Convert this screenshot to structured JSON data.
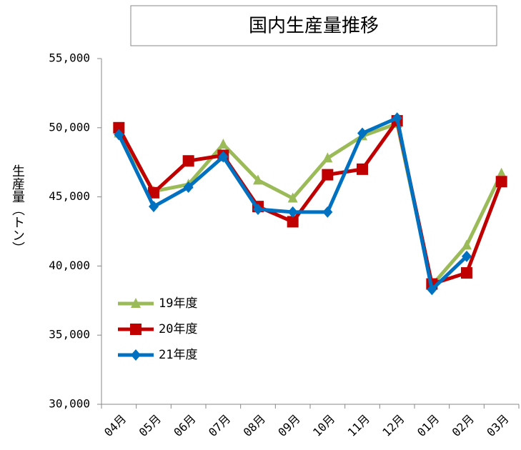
{
  "chart_data": {
    "type": "line",
    "title": "国内生産量推移",
    "y_label": "生産量（トン）",
    "categories": [
      "04月",
      "05月",
      "06月",
      "07月",
      "08月",
      "09月",
      "10月",
      "11月",
      "12月",
      "01月",
      "02月",
      "03月"
    ],
    "series": [
      {
        "name": "19年度",
        "color": "#9bbb59",
        "marker": "triangle",
        "values": [
          49600,
          45400,
          45900,
          48800,
          46200,
          44900,
          47800,
          49400,
          50300,
          38600,
          41500,
          46700
        ]
      },
      {
        "name": "20年度",
        "color": "#c00000",
        "marker": "square",
        "values": [
          50000,
          45300,
          47600,
          48000,
          44300,
          43200,
          46600,
          47000,
          50500,
          38700,
          39500,
          46100
        ]
      },
      {
        "name": "21年度",
        "color": "#0070c0",
        "marker": "diamond",
        "values": [
          49500,
          44300,
          45700,
          47900,
          44100,
          43900,
          43900,
          49600,
          50700,
          38300,
          40700,
          null
        ]
      }
    ],
    "ylim": [
      30000,
      55000
    ],
    "yticks": [
      {
        "value": 30000,
        "label": "30,000"
      },
      {
        "value": 35000,
        "label": "35,000"
      },
      {
        "value": 40000,
        "label": "40,000"
      },
      {
        "value": 45000,
        "label": "45,000"
      },
      {
        "value": 50000,
        "label": "50,000"
      },
      {
        "value": 55000,
        "label": "55,000"
      }
    ],
    "grid": false,
    "legend": "lower-left"
  }
}
